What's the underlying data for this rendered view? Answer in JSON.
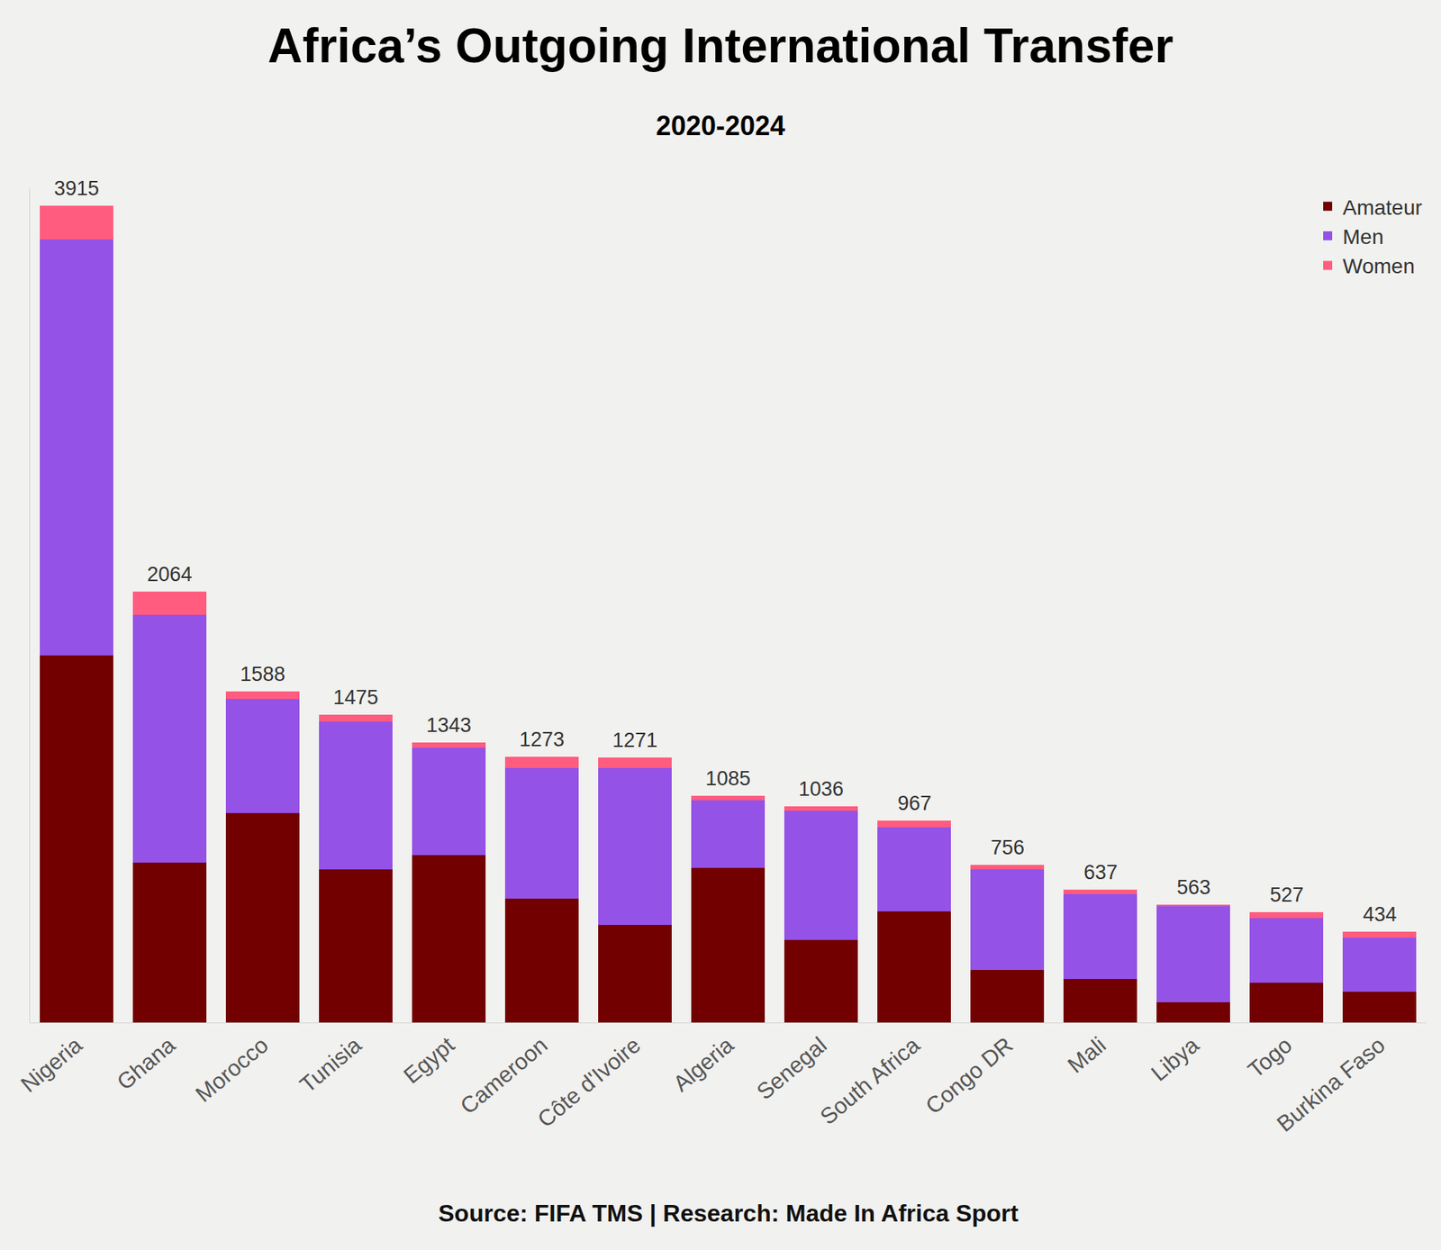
{
  "chart_data": {
    "type": "bar",
    "title": "Africa’s Outgoing International Transfer",
    "subtitle": "2020-2024",
    "source": "Source: FIFA TMS | Research: Made In Africa Sport",
    "categories": [
      "Nigeria",
      "Ghana",
      "Morocco",
      "Tunisia",
      "Egypt",
      "Cameroon",
      "Côte d'Ivoire",
      "Algeria",
      "Senegal",
      "South Africa",
      "Congo DR",
      "Mali",
      "Libya",
      "Togo",
      "Burkina Faso"
    ],
    "series": [
      {
        "name": "Amateur",
        "color": "#720000",
        "values": [
          1758,
          766,
          1005,
          735,
          802,
          594,
          469,
          740,
          394,
          531,
          252,
          208,
          97,
          190,
          146
        ]
      },
      {
        "name": "Men",
        "color": "#9552e6",
        "values": [
          1993,
          1187,
          545,
          709,
          514,
          624,
          749,
          323,
          620,
          403,
          483,
          407,
          461,
          310,
          261
        ]
      },
      {
        "name": "Women",
        "color": "#ff5c7f",
        "values": [
          164,
          111,
          38,
          31,
          27,
          55,
          53,
          22,
          22,
          33,
          21,
          22,
          5,
          27,
          27
        ]
      }
    ],
    "totals": [
      3915,
      2064,
      1588,
      1475,
      1343,
      1273,
      1271,
      1085,
      1036,
      967,
      756,
      637,
      563,
      527,
      434
    ],
    "stacked": true,
    "ylim": [
      0,
      4000
    ],
    "grid": false,
    "legend": "top-right",
    "tick_labels": "x"
  }
}
